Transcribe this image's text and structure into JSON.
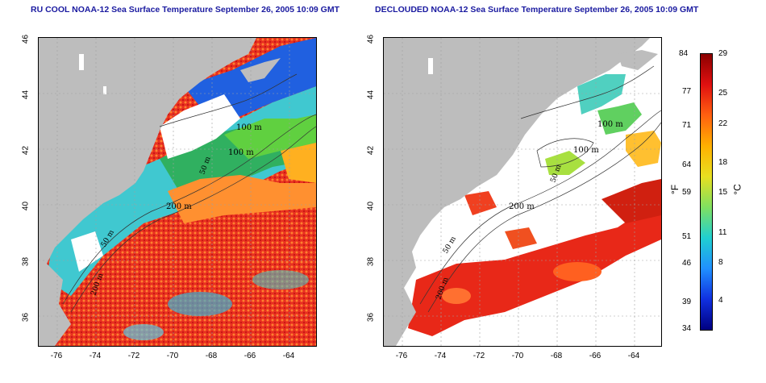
{
  "left_panel": {
    "title": "RU COOL NOAA-12 Sea Surface Temperature September 26, 2005 10:09 GMT",
    "isobaths": [
      "100 m",
      "100 m",
      "50 m",
      "200 m",
      "200 m",
      "50 m"
    ]
  },
  "right_panel": {
    "title": "DECLOUDED NOAA-12 Sea Surface Temperature September 26, 2005 10:09 GMT",
    "isobaths": [
      "100 m",
      "100 m",
      "50 m",
      "200 m",
      "50 m",
      "200 m"
    ]
  },
  "axes": {
    "x_ticks": [
      "-76",
      "-74",
      "-72",
      "-70",
      "-68",
      "-66",
      "-64"
    ],
    "y_ticks": [
      "46",
      "44",
      "42",
      "40",
      "38",
      "36"
    ]
  },
  "colorbar": {
    "fahrenheit_unit": "°F",
    "celsius_unit": "°C",
    "fahrenheit_ticks": [
      "84",
      "77",
      "71",
      "64",
      "59",
      "51",
      "46",
      "39",
      "34"
    ],
    "celsius_ticks": [
      "29",
      "25",
      "22",
      "18",
      "15",
      "11",
      "8",
      "4"
    ],
    "colors": [
      "#8b0000",
      "#e01010",
      "#ff6010",
      "#ffb000",
      "#e8e020",
      "#80e060",
      "#20d0d0",
      "#2090ff",
      "#1030e0",
      "#000080"
    ]
  }
}
